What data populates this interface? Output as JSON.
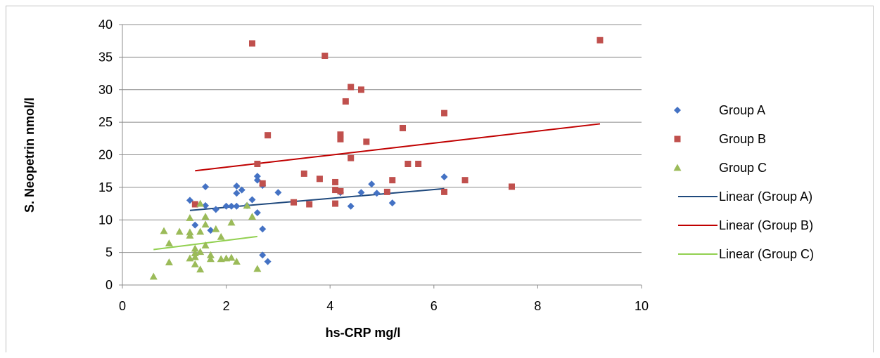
{
  "chart_data": {
    "type": "scatter",
    "xlabel": "hs-CRP mg/l",
    "ylabel": "S. Neopetrin nmol/l",
    "xlim": [
      0,
      10
    ],
    "ylim": [
      0,
      40
    ],
    "xticks": [
      0,
      2,
      4,
      6,
      8,
      10
    ],
    "yticks": [
      0,
      5,
      10,
      15,
      20,
      25,
      30,
      35,
      40
    ],
    "grid": "horizontal",
    "legend_position": "right",
    "series": [
      {
        "name": "Group A",
        "marker": "diamond",
        "color": "#4472C4",
        "points": [
          [
            1.3,
            13.0
          ],
          [
            1.4,
            9.2
          ],
          [
            1.6,
            15.1
          ],
          [
            1.6,
            12.2
          ],
          [
            1.7,
            8.4
          ],
          [
            1.8,
            11.6
          ],
          [
            2.0,
            12.1
          ],
          [
            2.1,
            12.1
          ],
          [
            2.2,
            15.2
          ],
          [
            2.2,
            14.1
          ],
          [
            2.2,
            12.1
          ],
          [
            2.3,
            14.6
          ],
          [
            2.4,
            12.2
          ],
          [
            2.5,
            13.1
          ],
          [
            2.6,
            16.7
          ],
          [
            2.6,
            16.1
          ],
          [
            2.6,
            11.1
          ],
          [
            2.7,
            15.3
          ],
          [
            2.7,
            8.6
          ],
          [
            2.7,
            4.6
          ],
          [
            2.8,
            3.6
          ],
          [
            3.0,
            14.2
          ],
          [
            4.2,
            14.2
          ],
          [
            4.4,
            12.1
          ],
          [
            4.6,
            14.2
          ],
          [
            4.8,
            15.5
          ],
          [
            4.9,
            14.1
          ],
          [
            5.2,
            12.6
          ],
          [
            6.2,
            16.6
          ]
        ]
      },
      {
        "name": "Group B",
        "marker": "square",
        "color": "#C0504D",
        "points": [
          [
            1.4,
            12.4
          ],
          [
            2.5,
            37.1
          ],
          [
            2.6,
            18.6
          ],
          [
            2.7,
            15.6
          ],
          [
            2.8,
            23.0
          ],
          [
            3.3,
            12.7
          ],
          [
            3.5,
            17.1
          ],
          [
            3.6,
            12.4
          ],
          [
            3.8,
            16.3
          ],
          [
            3.9,
            35.2
          ],
          [
            4.1,
            15.8
          ],
          [
            4.1,
            14.6
          ],
          [
            4.1,
            12.5
          ],
          [
            4.2,
            23.1
          ],
          [
            4.2,
            22.4
          ],
          [
            4.2,
            14.4
          ],
          [
            4.3,
            28.2
          ],
          [
            4.4,
            30.4
          ],
          [
            4.4,
            19.5
          ],
          [
            4.6,
            30.0
          ],
          [
            4.7,
            22.0
          ],
          [
            5.1,
            14.3
          ],
          [
            5.2,
            16.1
          ],
          [
            5.4,
            24.1
          ],
          [
            5.5,
            18.6
          ],
          [
            5.7,
            18.6
          ],
          [
            6.2,
            26.4
          ],
          [
            6.2,
            14.3
          ],
          [
            6.6,
            16.1
          ],
          [
            7.5,
            15.1
          ],
          [
            9.2,
            37.6
          ]
        ]
      },
      {
        "name": "Group C",
        "marker": "triangle",
        "color": "#9BBB59",
        "points": [
          [
            0.6,
            1.3
          ],
          [
            0.8,
            8.3
          ],
          [
            0.9,
            6.4
          ],
          [
            0.9,
            3.5
          ],
          [
            1.1,
            8.2
          ],
          [
            1.3,
            10.3
          ],
          [
            1.3,
            8.1
          ],
          [
            1.3,
            7.6
          ],
          [
            1.3,
            4.1
          ],
          [
            1.4,
            5.6
          ],
          [
            1.4,
            4.9
          ],
          [
            1.4,
            4.3
          ],
          [
            1.4,
            3.2
          ],
          [
            1.5,
            12.5
          ],
          [
            1.5,
            8.2
          ],
          [
            1.5,
            5.1
          ],
          [
            1.5,
            2.4
          ],
          [
            1.6,
            10.5
          ],
          [
            1.6,
            9.3
          ],
          [
            1.6,
            6.1
          ],
          [
            1.7,
            4.6
          ],
          [
            1.7,
            4.0
          ],
          [
            1.8,
            8.6
          ],
          [
            1.9,
            7.4
          ],
          [
            1.9,
            4.0
          ],
          [
            2.0,
            4.1
          ],
          [
            2.1,
            9.6
          ],
          [
            2.1,
            4.2
          ],
          [
            2.2,
            3.6
          ],
          [
            2.4,
            12.2
          ],
          [
            2.5,
            10.5
          ],
          [
            2.6,
            2.5
          ]
        ]
      }
    ],
    "trendlines": [
      {
        "name": "Linear (Group A)",
        "color": "#1F497D",
        "x": [
          1.3,
          6.2
        ],
        "y": [
          11.45,
          14.8
        ]
      },
      {
        "name": "Linear (Group B)",
        "color": "#C00000",
        "x": [
          1.4,
          9.2
        ],
        "y": [
          17.55,
          24.75
        ]
      },
      {
        "name": "Linear (Group C)",
        "color": "#92D050",
        "x": [
          0.6,
          2.6
        ],
        "y": [
          5.45,
          7.45
        ]
      }
    ]
  }
}
